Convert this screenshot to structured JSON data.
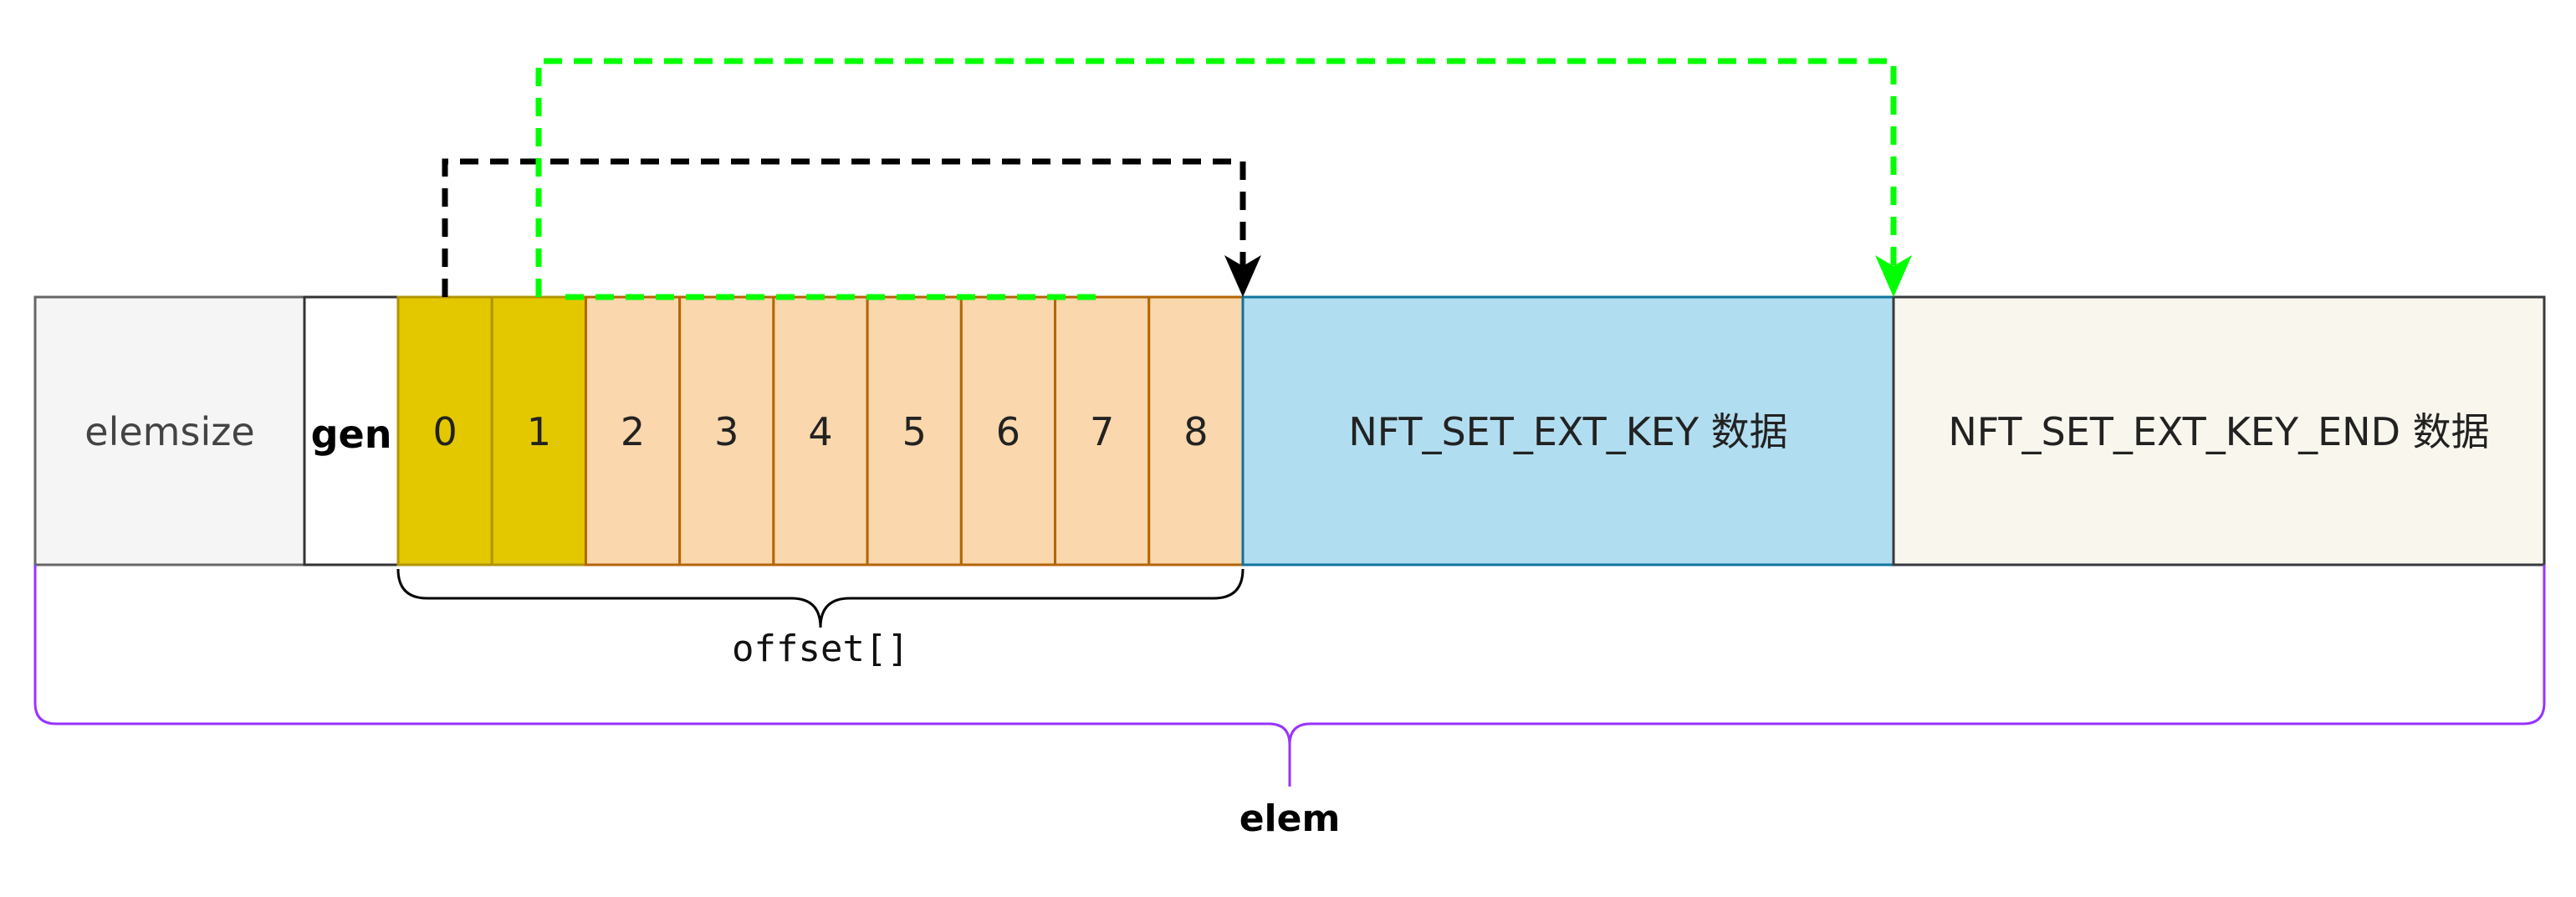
{
  "diagram": {
    "elemsize_label": "elemsize",
    "gen_label": "gen",
    "offset_cells": [
      "0",
      "1",
      "2",
      "3",
      "4",
      "5",
      "6",
      "7",
      "8"
    ],
    "key_label": "NFT_SET_EXT_KEY 数据",
    "key_end_label": "NFT_SET_EXT_KEY_END 数据",
    "offset_brace_label": "offset[]",
    "elem_brace_label": "elem"
  },
  "colors": {
    "elemsize_fill": "#f5f5f5",
    "gen_fill": "#ffffff",
    "offset_highlight_fill": "#e3c800",
    "offset_fill": "#fad7ac",
    "key_fill": "#b1ddf0",
    "key_end_fill": "#f9f7ed",
    "arrow_black": "#000000",
    "arrow_green": "#00ff00",
    "elem_brace": "#9933ff"
  }
}
